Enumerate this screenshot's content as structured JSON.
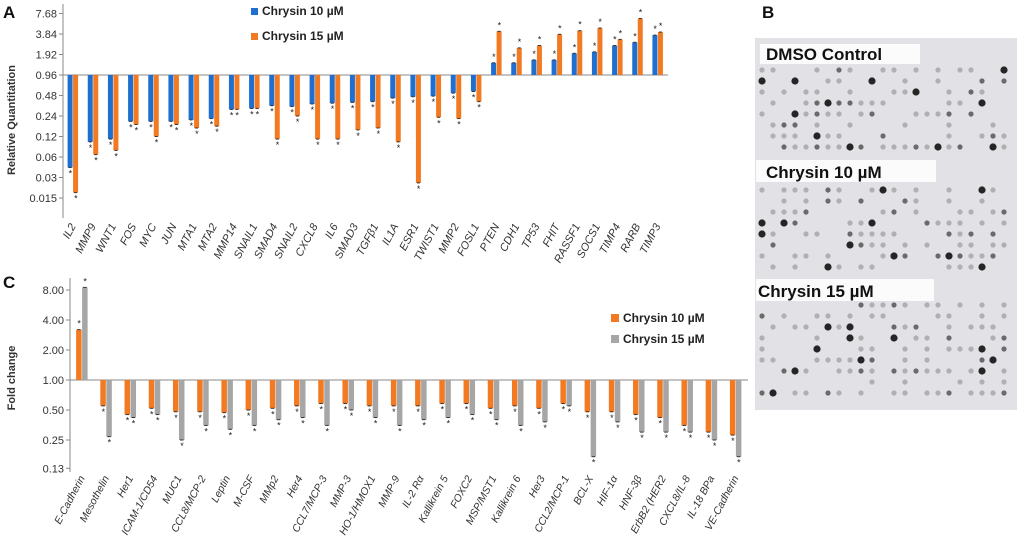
{
  "colors": {
    "blue": "#1f6fd1",
    "orange": "#f27a22",
    "gray": "#a6a6a6",
    "axis": "#888888"
  },
  "panel_b": {
    "letter": "B",
    "labels": [
      "DMSO Control",
      "Chrysin 10 µM",
      "Chrysin 15 µM"
    ]
  },
  "chart_data": [
    {
      "panel": "A",
      "type": "bar",
      "scale": "log2",
      "baseline": 0.96,
      "ylabel": "Relative Quantitation",
      "yticks": [
        "7.68",
        "3.84",
        "1.92",
        "0.96",
        "0.48",
        "0.24",
        "0.12",
        "0.06",
        "0.03",
        "0.015"
      ],
      "ylim": [
        0.015,
        7.68
      ],
      "categories": [
        "IL2",
        "MMP9",
        "WNT1",
        "FOS",
        "MYC",
        "JUN",
        "MTA1",
        "MTA2",
        "MMP14",
        "SNAIL1",
        "SMAD4",
        "SNAIL2",
        "CXCL8",
        "IL6",
        "SMAD3",
        "TGFβ1",
        "IL1A",
        "ESR1",
        "TWIST1",
        "MMP2",
        "FOSL1",
        "PTEN",
        "CDH1",
        "TP53",
        "FHIT",
        "RASSF1",
        "SOCS1",
        "TIMP4",
        "RARB",
        "TIMP3"
      ],
      "series": [
        {
          "name": "Chrysin 10 µM",
          "color": "#1f6fd1",
          "values": [
            0.042,
            0.1,
            0.11,
            0.2,
            0.2,
            0.2,
            0.21,
            0.22,
            0.3,
            0.31,
            0.34,
            0.33,
            0.36,
            0.37,
            0.38,
            0.39,
            0.44,
            0.46,
            0.47,
            0.52,
            0.55,
            1.45,
            1.45,
            1.6,
            1.6,
            2.0,
            2.1,
            2.6,
            2.9,
            3.7
          ]
        },
        {
          "name": "Chrysin 15 µM",
          "color": "#f27a22",
          "values": [
            0.018,
            0.065,
            0.075,
            0.18,
            0.12,
            0.18,
            0.16,
            0.17,
            0.3,
            0.31,
            0.11,
            0.24,
            0.11,
            0.11,
            0.15,
            0.16,
            0.1,
            0.025,
            0.23,
            0.22,
            0.39,
            4.2,
            2.4,
            2.6,
            3.8,
            4.3,
            4.7,
            3.2,
            6.5,
            4.1
          ]
        }
      ],
      "legend": [
        "Chrysin 10 µM",
        "Chrysin 15 µM"
      ],
      "annotation": "*"
    },
    {
      "panel": "C",
      "type": "bar",
      "scale": "log2",
      "baseline": 1.0,
      "ylabel": "Fold change",
      "yticks": [
        "8.00",
        "4.00",
        "2.00",
        "1.00",
        "0.50",
        "0.25",
        "0.13"
      ],
      "ylim": [
        0.125,
        10
      ],
      "categories": [
        "E-Cadherin",
        "Mesothelin",
        "Her1",
        "ICAM-1/CD54",
        "MUC1",
        "CCL8/MCP-2",
        "Leptin",
        "M-CSF",
        "MMp2",
        "Her4",
        "CCL7/MCP-3",
        "MMP-3",
        "HO-1/HMOX1",
        "MMP-9",
        "IL-2 Rα",
        "Kallikrein 5",
        "FOXC2",
        "MSP/MST1",
        "Kallikrein 6",
        "Her3",
        "CCL2/MCP-1",
        "BCL-X",
        "HIF-1α",
        "HNF-3β",
        "ErbB2 (HER2",
        "CXCL8/IL-8",
        "IL-18 BPa",
        "VE-Cadherin"
      ],
      "series": [
        {
          "name": "Chrysin 10 µM",
          "color": "#f27a22",
          "values": [
            3.2,
            0.55,
            0.45,
            0.52,
            0.48,
            0.48,
            0.47,
            0.5,
            0.52,
            0.55,
            0.58,
            0.58,
            0.55,
            0.55,
            0.55,
            0.58,
            0.58,
            0.52,
            0.55,
            0.52,
            0.58,
            0.48,
            0.48,
            0.45,
            0.42,
            0.35,
            0.3,
            0.28
          ]
        },
        {
          "name": "Chrysin 15 µM",
          "color": "#a6a6a6",
          "values": [
            8.5,
            0.27,
            0.42,
            0.45,
            0.25,
            0.35,
            0.32,
            0.35,
            0.4,
            0.42,
            0.35,
            0.5,
            0.42,
            0.35,
            0.4,
            0.42,
            0.45,
            0.4,
            0.35,
            0.38,
            0.55,
            0.17,
            0.38,
            0.3,
            0.3,
            0.3,
            0.25,
            0.17
          ]
        }
      ],
      "legend": [
        "Chrysin 10 µM",
        "Chrysin 15 µM"
      ],
      "annotation": "*"
    }
  ]
}
